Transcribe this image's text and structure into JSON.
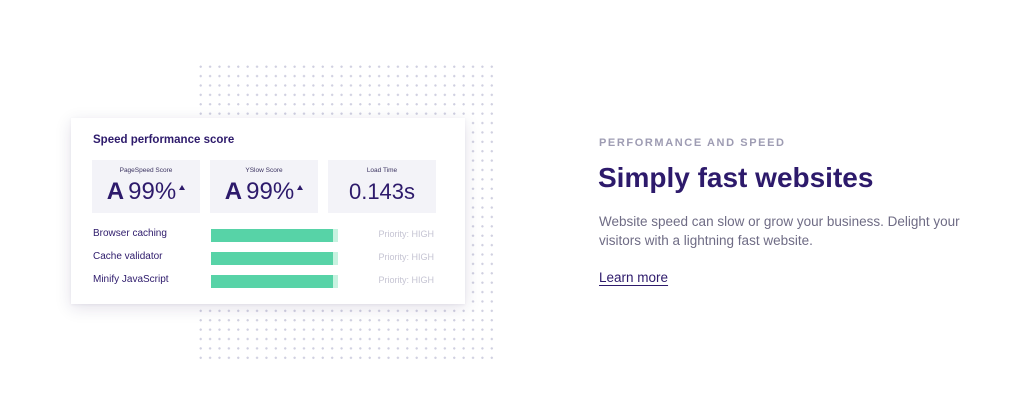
{
  "card": {
    "title": "Speed performance score",
    "scores": [
      {
        "label": "PageSpeed Score",
        "grade": "A",
        "value": "99%",
        "trend": "up"
      },
      {
        "label": "YSlow Score",
        "grade": "A",
        "value": "99%",
        "trend": "up"
      },
      {
        "label": "Load Time",
        "value": "0.143s"
      }
    ],
    "rows": [
      {
        "label": "Browser caching",
        "fill_percent": 96,
        "priority": "Priority: HIGH"
      },
      {
        "label": "Cache validator",
        "fill_percent": 96,
        "priority": "Priority: HIGH"
      },
      {
        "label": "Minify JavaScript",
        "fill_percent": 96,
        "priority": "Priority: HIGH"
      }
    ]
  },
  "content": {
    "eyebrow": "PERFORMANCE AND SPEED",
    "headline": "Simply fast websites",
    "description": "Website speed can slow or grow your business. Delight your visitors with a lightning fast website.",
    "link_label": "Learn more"
  },
  "colors": {
    "primary": "#2d1a6b",
    "muted": "#9e9cb3",
    "body_text": "#6f6c85",
    "bar": "#57d3a7",
    "bar_track": "#c7f2e0",
    "score_bg": "#f3f3f8"
  }
}
